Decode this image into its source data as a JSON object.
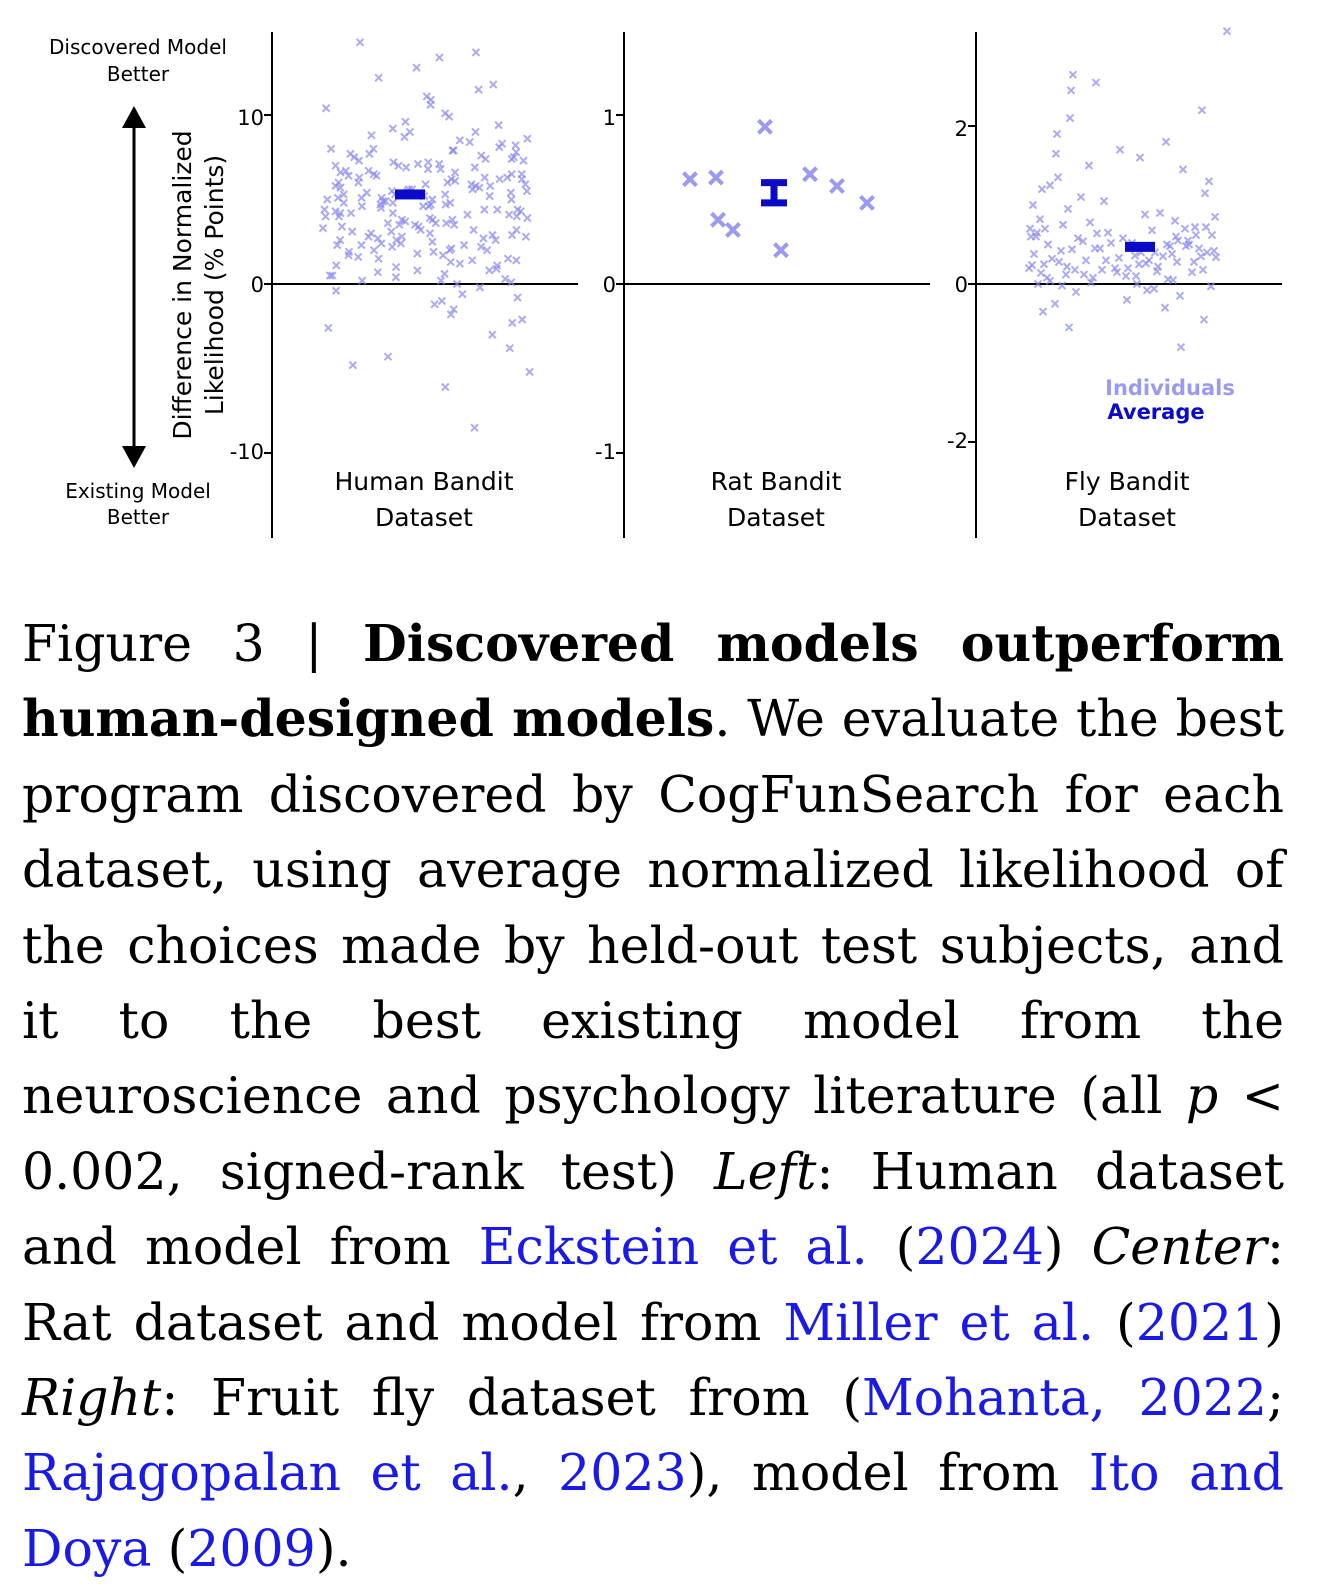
{
  "figure": {
    "direction_top": [
      "Discovered Model",
      "Better"
    ],
    "direction_bottom": [
      "Existing Model",
      "Better"
    ],
    "ylabel_lines": [
      "Difference in Normalized",
      "Likelihood (% Points)"
    ],
    "legend": {
      "individuals": "Individuals",
      "average": "Average"
    },
    "colors": {
      "individual": "#8888ee",
      "average": "#0a0ac8",
      "axis": "#000000",
      "legend_individuals": "#9a9af0",
      "legend_average": "#0a0ac8"
    }
  },
  "chart_data": [
    {
      "type": "scatter",
      "xlabel": [
        "Human Bandit",
        "Dataset"
      ],
      "yticks": [
        10,
        0,
        -10
      ],
      "ylim": [
        -15,
        15
      ],
      "marker": "x",
      "individuals": [
        14.3,
        13.7,
        13.4,
        12.8,
        12.2,
        11.8,
        11.5,
        11.1,
        10.9,
        10.6,
        10.4,
        10.1,
        9.9,
        9.6,
        9.4,
        9.2,
        9.0,
        8.8,
        8.6,
        8.4,
        8.3,
        8.1,
        8.0,
        7.9,
        7.8,
        7.7,
        7.6,
        7.5,
        7.4,
        7.3,
        7.2,
        7.1,
        7.0,
        6.9,
        6.8,
        6.7,
        6.6,
        6.5,
        6.5,
        6.4,
        6.3,
        6.2,
        6.1,
        6.0,
        5.9,
        5.8,
        5.8,
        5.7,
        5.6,
        5.5,
        5.4,
        5.3,
        5.3,
        5.2,
        5.1,
        5.0,
        4.9,
        4.8,
        4.8,
        4.7,
        4.6,
        4.5,
        4.4,
        4.3,
        4.2,
        4.1,
        4.0,
        3.9,
        3.8,
        3.7,
        3.6,
        3.5,
        3.4,
        3.3,
        3.2,
        3.1,
        3.0,
        2.9,
        2.8,
        2.7,
        2.6,
        2.5,
        2.4,
        2.3,
        2.2,
        2.1,
        2.0,
        1.9,
        1.8,
        1.7,
        1.6,
        1.5,
        1.4,
        1.3,
        1.2,
        1.1,
        1.0,
        0.9,
        0.8,
        0.7,
        0.6,
        0.5,
        0.4,
        0.3,
        0.2,
        0.1,
        0.0,
        -0.2,
        -0.4,
        -0.6,
        -0.8,
        -1.0,
        -1.2,
        -1.5,
        -1.8,
        -2.1,
        -2.3,
        -2.6,
        -3.0,
        -3.8,
        -4.3,
        -4.8,
        -5.2,
        -6.1,
        -8.5,
        6.0,
        5.7,
        5.3,
        4.9,
        4.6,
        4.2,
        3.8,
        6.3,
        5.5,
        5.1,
        4.4,
        4.0,
        3.6,
        3.0,
        2.6,
        2.2,
        7.0,
        6.6,
        6.2,
        5.8,
        5.4,
        5.0,
        4.6,
        4.2,
        3.4,
        2.8,
        7.5,
        7.1,
        6.7,
        6.3,
        5.9,
        5.5,
        5.1,
        4.7,
        4.3,
        3.9,
        3.5,
        3.1,
        2.7,
        2.3,
        1.9,
        1.5,
        8.2,
        7.7,
        7.3,
        6.9,
        6.4,
        6.0,
        5.6,
        5.2,
        4.8,
        4.4,
        4.0,
        3.6,
        3.2,
        2.8,
        2.4,
        2.0,
        9.0,
        8.5,
        8.0,
        7.4,
        6.8,
        6.2,
        5.6,
        5.0,
        4.4,
        3.8,
        3.2,
        2.6,
        2.0,
        1.4,
        0.8,
        0.2,
        8.7,
        7.9,
        7.2,
        6.5,
        5.9,
        5.3,
        4.7,
        4.1,
        3.5,
        2.9,
        2.3,
        1.7,
        1.1,
        0.5
      ],
      "average": {
        "value": 5.3,
        "ci": [
          5.1,
          5.5
        ]
      }
    },
    {
      "type": "scatter",
      "xlabel": [
        "Rat Bandit",
        "Dataset"
      ],
      "yticks": [
        1,
        0,
        -1
      ],
      "ylim": [
        -1.5,
        1.5
      ],
      "marker": "x",
      "individuals": [
        0.62,
        0.63,
        0.38,
        0.32,
        0.93,
        0.2,
        0.65,
        0.58,
        0.48
      ],
      "average": {
        "value": 0.54,
        "ci": [
          0.48,
          0.6
        ]
      }
    },
    {
      "type": "scatter",
      "xlabel": [
        "Fly Bandit",
        "Dataset"
      ],
      "yticks": [
        2,
        0,
        -2
      ],
      "ylim": [
        -3,
        3
      ],
      "marker": "x",
      "individuals": [
        3.2,
        2.65,
        2.55,
        2.45,
        2.2,
        2.1,
        1.9,
        1.8,
        1.7,
        1.65,
        1.6,
        1.5,
        1.45,
        1.35,
        1.3,
        1.25,
        1.2,
        1.15,
        1.1,
        1.05,
        1.0,
        0.95,
        0.9,
        0.88,
        0.85,
        0.82,
        0.8,
        0.78,
        0.75,
        0.72,
        0.7,
        0.68,
        0.65,
        0.62,
        0.6,
        0.58,
        0.55,
        0.52,
        0.5,
        0.48,
        0.45,
        0.42,
        0.4,
        0.38,
        0.35,
        0.33,
        0.3,
        0.28,
        0.25,
        0.22,
        0.2,
        0.18,
        0.15,
        0.12,
        0.1,
        0.08,
        0.05,
        0.02,
        0.0,
        -0.03,
        -0.06,
        -0.1,
        -0.15,
        -0.2,
        -0.25,
        -0.3,
        -0.35,
        -0.45,
        -0.55,
        -0.8,
        0.42,
        0.38,
        0.35,
        0.3,
        0.25,
        0.2,
        0.15,
        0.55,
        0.5,
        0.45,
        0.4,
        0.6,
        0.65,
        0.7,
        0.32,
        0.28,
        0.22,
        0.18,
        0.12,
        0.08,
        0.45,
        0.52,
        0.58,
        0.36,
        0.26,
        0.16,
        0.06,
        0.48,
        0.62,
        0.72,
        0.34,
        0.24,
        0.14,
        0.04,
        -0.02,
        0.44,
        0.54,
        0.64,
        0.3,
        0.2,
        0.1,
        0.0,
        -0.08,
        0.4,
        0.5,
        0.6,
        0.7,
        0.28,
        0.18
      ],
      "average": {
        "value": 0.47,
        "ci": [
          0.43,
          0.51
        ]
      }
    }
  ],
  "caption": {
    "fig_label": "Figure 3 | ",
    "title": "Discovered models outperform human-designed models",
    "t1": ". We evaluate the best program discovered by CogFunSearch for each dataset, using average normalized likelihood of the choices made by held-out test subjects, and it to the best existing model from the neuroscience and psychology literature (all ",
    "p": "p",
    "t2": " < 0.002, signed-rank test) ",
    "left": "Left",
    "t3": ": Human dataset and model from ",
    "cite1_author": "Eckstein et al.",
    "cite1_open": " (",
    "cite1_year": "2024",
    "t4": ") ",
    "center": "Center",
    "t5": ": Rat dataset and model from ",
    "cite2_author": "Miller et al.",
    "cite2_open": " (",
    "cite2_year": "2021",
    "t6": ") ",
    "right": "Right",
    "t7": ": Fruit fly dataset from (",
    "cite3": "Mohanta, 2022",
    "t8": "; ",
    "cite4_author": "Rajagopalan et al.",
    "t9": ", ",
    "cite4_year": "2023",
    "t10": "), model from ",
    "cite5_author": "Ito and Doya",
    "cite5_open": " (",
    "cite5_year": "2009",
    "t11": ")."
  }
}
